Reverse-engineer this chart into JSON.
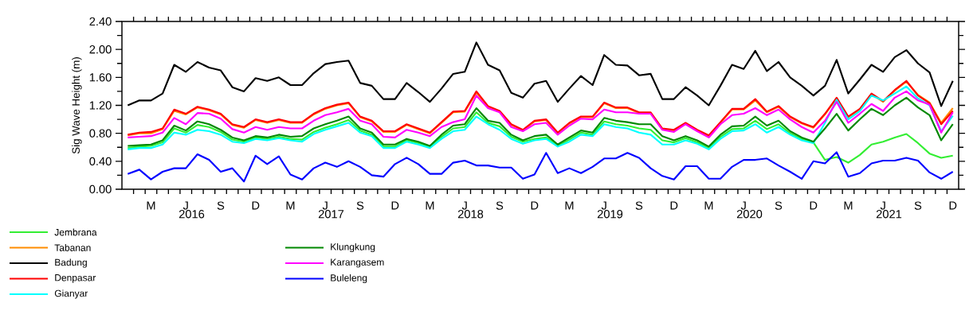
{
  "chart_data": {
    "type": "line",
    "ylabel": "Sig Wave Height (m)",
    "categories": [
      null,
      null,
      "M",
      null,
      null,
      "J",
      null,
      null,
      "S",
      null,
      null,
      "D",
      null,
      null,
      "M",
      null,
      null,
      "J",
      null,
      null,
      "S",
      null,
      null,
      "D",
      null,
      null,
      "M",
      null,
      null,
      "J",
      null,
      null,
      "S",
      null,
      null,
      "D",
      null,
      null,
      "M",
      null,
      null,
      "J",
      null,
      null,
      "S",
      null,
      null,
      "D",
      null,
      null,
      "M",
      null,
      null,
      "J",
      null,
      null,
      "S",
      null,
      null,
      "D",
      null,
      null,
      "M",
      null,
      null,
      "J",
      null,
      null,
      "S",
      null,
      null,
      "D"
    ],
    "series": [
      {
        "name": "Jembrana",
        "color": "#33ee33",
        "values": [
          0.59,
          0.61,
          0.62,
          0.67,
          0.87,
          0.81,
          0.92,
          0.89,
          0.82,
          0.71,
          0.68,
          0.74,
          0.72,
          0.75,
          0.72,
          0.71,
          0.82,
          0.88,
          0.93,
          0.99,
          0.84,
          0.78,
          0.61,
          0.61,
          0.7,
          0.66,
          0.61,
          0.75,
          0.87,
          0.89,
          1.1,
          0.95,
          0.9,
          0.75,
          0.68,
          0.72,
          0.74,
          0.62,
          0.71,
          0.81,
          0.78,
          0.97,
          0.93,
          0.91,
          0.87,
          0.85,
          0.7,
          0.67,
          0.73,
          0.67,
          0.59,
          0.75,
          0.86,
          0.87,
          0.98,
          0.86,
          0.93,
          0.8,
          0.72,
          0.67,
          0.42,
          0.46,
          0.38,
          0.49,
          0.64,
          0.68,
          0.74,
          0.79,
          0.66,
          0.51,
          0.45,
          0.48
        ]
      },
      {
        "name": "Tabanan",
        "color": "#ff8c00",
        "values": [
          0.77,
          0.8,
          0.8,
          0.86,
          1.12,
          1.07,
          1.17,
          1.13,
          1.07,
          0.92,
          0.88,
          0.99,
          0.95,
          0.99,
          0.95,
          0.95,
          1.07,
          1.15,
          1.2,
          1.23,
          1.03,
          0.97,
          0.82,
          0.82,
          0.92,
          0.86,
          0.8,
          0.95,
          1.1,
          1.11,
          1.38,
          1.18,
          1.11,
          0.92,
          0.84,
          0.97,
          0.99,
          0.8,
          0.94,
          1.03,
          1.03,
          1.23,
          1.16,
          1.16,
          1.09,
          1.09,
          0.86,
          0.84,
          0.94,
          0.84,
          0.76,
          0.95,
          1.14,
          1.14,
          1.27,
          1.1,
          1.18,
          1.03,
          0.94,
          0.88,
          1.07,
          1.3,
          1.03,
          1.14,
          1.36,
          1.25,
          1.41,
          1.54,
          1.35,
          1.24,
          0.95,
          1.16
        ]
      },
      {
        "name": "Badung",
        "color": "#000000",
        "values": [
          1.2,
          1.27,
          1.27,
          1.37,
          1.78,
          1.68,
          1.82,
          1.74,
          1.7,
          1.46,
          1.4,
          1.59,
          1.55,
          1.6,
          1.49,
          1.49,
          1.66,
          1.79,
          1.82,
          1.84,
          1.52,
          1.48,
          1.29,
          1.29,
          1.52,
          1.39,
          1.25,
          1.44,
          1.65,
          1.68,
          2.1,
          1.78,
          1.7,
          1.38,
          1.31,
          1.51,
          1.55,
          1.25,
          1.44,
          1.62,
          1.49,
          1.92,
          1.78,
          1.77,
          1.63,
          1.65,
          1.29,
          1.29,
          1.46,
          1.34,
          1.2,
          1.48,
          1.78,
          1.72,
          1.98,
          1.69,
          1.82,
          1.6,
          1.48,
          1.34,
          1.48,
          1.85,
          1.37,
          1.57,
          1.78,
          1.68,
          1.89,
          1.99,
          1.8,
          1.67,
          1.19,
          1.55
        ]
      },
      {
        "name": "Denpasar",
        "color": "#ff0000",
        "values": [
          0.78,
          0.81,
          0.82,
          0.87,
          1.14,
          1.08,
          1.18,
          1.14,
          1.08,
          0.93,
          0.89,
          1.0,
          0.96,
          1.0,
          0.96,
          0.96,
          1.08,
          1.16,
          1.21,
          1.24,
          1.04,
          0.98,
          0.83,
          0.83,
          0.93,
          0.87,
          0.81,
          0.96,
          1.11,
          1.12,
          1.4,
          1.19,
          1.12,
          0.93,
          0.85,
          0.98,
          1.0,
          0.81,
          0.95,
          1.04,
          1.04,
          1.24,
          1.17,
          1.17,
          1.1,
          1.1,
          0.87,
          0.85,
          0.95,
          0.85,
          0.77,
          0.96,
          1.15,
          1.15,
          1.29,
          1.11,
          1.19,
          1.04,
          0.95,
          0.89,
          1.08,
          1.31,
          1.04,
          1.15,
          1.37,
          1.26,
          1.42,
          1.55,
          1.34,
          1.23,
          0.93,
          1.12
        ]
      },
      {
        "name": "Gianyar",
        "color": "#00ffff",
        "values": [
          0.57,
          0.59,
          0.59,
          0.64,
          0.81,
          0.78,
          0.85,
          0.83,
          0.78,
          0.68,
          0.66,
          0.72,
          0.7,
          0.73,
          0.7,
          0.68,
          0.79,
          0.85,
          0.9,
          0.95,
          0.81,
          0.76,
          0.59,
          0.59,
          0.68,
          0.64,
          0.59,
          0.72,
          0.83,
          0.85,
          1.04,
          0.93,
          0.85,
          0.72,
          0.65,
          0.7,
          0.72,
          0.61,
          0.68,
          0.78,
          0.76,
          0.93,
          0.89,
          0.87,
          0.81,
          0.78,
          0.64,
          0.64,
          0.7,
          0.65,
          0.57,
          0.72,
          0.83,
          0.84,
          0.93,
          0.81,
          0.89,
          0.78,
          0.7,
          0.66,
          0.95,
          1.28,
          1.0,
          1.12,
          1.34,
          1.27,
          1.37,
          1.47,
          1.3,
          1.2,
          0.83,
          1.05
        ]
      },
      {
        "name": "Klungkung",
        "color": "#008800",
        "values": [
          0.62,
          0.63,
          0.64,
          0.7,
          0.91,
          0.84,
          0.97,
          0.93,
          0.85,
          0.74,
          0.7,
          0.76,
          0.74,
          0.78,
          0.75,
          0.76,
          0.87,
          0.93,
          0.98,
          1.04,
          0.87,
          0.81,
          0.64,
          0.64,
          0.72,
          0.68,
          0.62,
          0.78,
          0.91,
          0.93,
          1.16,
          0.98,
          0.95,
          0.78,
          0.7,
          0.76,
          0.78,
          0.64,
          0.74,
          0.84,
          0.81,
          1.02,
          0.98,
          0.96,
          0.93,
          0.93,
          0.76,
          0.7,
          0.76,
          0.7,
          0.61,
          0.78,
          0.9,
          0.91,
          1.04,
          0.91,
          0.98,
          0.83,
          0.74,
          0.68,
          0.87,
          1.08,
          0.84,
          1.0,
          1.15,
          1.06,
          1.2,
          1.31,
          1.17,
          1.06,
          0.7,
          0.93
        ]
      },
      {
        "name": "Karangasem",
        "color": "#ff00ff",
        "values": [
          0.74,
          0.75,
          0.76,
          0.81,
          1.02,
          0.93,
          1.09,
          1.08,
          1.01,
          0.86,
          0.81,
          0.89,
          0.85,
          0.89,
          0.87,
          0.87,
          0.98,
          1.06,
          1.1,
          1.15,
          0.98,
          0.93,
          0.75,
          0.74,
          0.85,
          0.81,
          0.76,
          0.89,
          0.96,
          1.0,
          1.34,
          1.16,
          1.1,
          0.89,
          0.83,
          0.93,
          0.95,
          0.78,
          0.91,
          1.01,
          1.0,
          1.14,
          1.1,
          1.1,
          1.08,
          1.08,
          0.85,
          0.82,
          0.93,
          0.83,
          0.74,
          0.93,
          1.06,
          1.08,
          1.16,
          1.06,
          1.14,
          1.0,
          0.89,
          0.81,
          0.98,
          1.25,
          0.95,
          1.08,
          1.22,
          1.12,
          1.31,
          1.4,
          1.27,
          1.21,
          0.81,
          1.1
        ]
      },
      {
        "name": "Buleleng",
        "color": "#0000ff",
        "values": [
          0.22,
          0.28,
          0.14,
          0.25,
          0.3,
          0.3,
          0.5,
          0.42,
          0.25,
          0.3,
          0.11,
          0.48,
          0.36,
          0.47,
          0.21,
          0.14,
          0.3,
          0.38,
          0.32,
          0.4,
          0.32,
          0.2,
          0.18,
          0.36,
          0.45,
          0.36,
          0.22,
          0.22,
          0.38,
          0.41,
          0.34,
          0.34,
          0.31,
          0.31,
          0.15,
          0.21,
          0.52,
          0.23,
          0.3,
          0.23,
          0.32,
          0.44,
          0.44,
          0.52,
          0.45,
          0.3,
          0.19,
          0.14,
          0.33,
          0.33,
          0.15,
          0.15,
          0.32,
          0.42,
          0.42,
          0.44,
          0.34,
          0.25,
          0.15,
          0.4,
          0.37,
          0.53,
          0.18,
          0.23,
          0.37,
          0.41,
          0.41,
          0.45,
          0.41,
          0.24,
          0.15,
          0.25
        ]
      }
    ],
    "x2lim": [
      2016,
      2022
    ],
    "x2ticks": [
      {
        "value": 2016.5,
        "label": "2016"
      },
      {
        "value": 2017.5,
        "label": "2017"
      },
      {
        "value": 2018.5,
        "label": "2018"
      },
      {
        "value": 2019.5,
        "label": "2019"
      },
      {
        "value": 2020.5,
        "label": "2020"
      },
      {
        "value": 2021.5,
        "label": "2021"
      }
    ],
    "ylim": [
      0,
      2.4
    ],
    "yticks": [
      {
        "value": 0,
        "label": "0.00"
      },
      {
        "value": 0.4,
        "label": "0.40"
      },
      {
        "value": 0.8,
        "label": "0.80"
      },
      {
        "value": 1.2,
        "label": "1.20"
      },
      {
        "value": 1.6,
        "label": "1.60"
      },
      {
        "value": 2.0,
        "label": "2.00"
      },
      {
        "value": 2.4,
        "label": "2.40"
      }
    ],
    "grid": false,
    "legend": "bottom left",
    "marker": "none",
    "line_style": "solid"
  }
}
